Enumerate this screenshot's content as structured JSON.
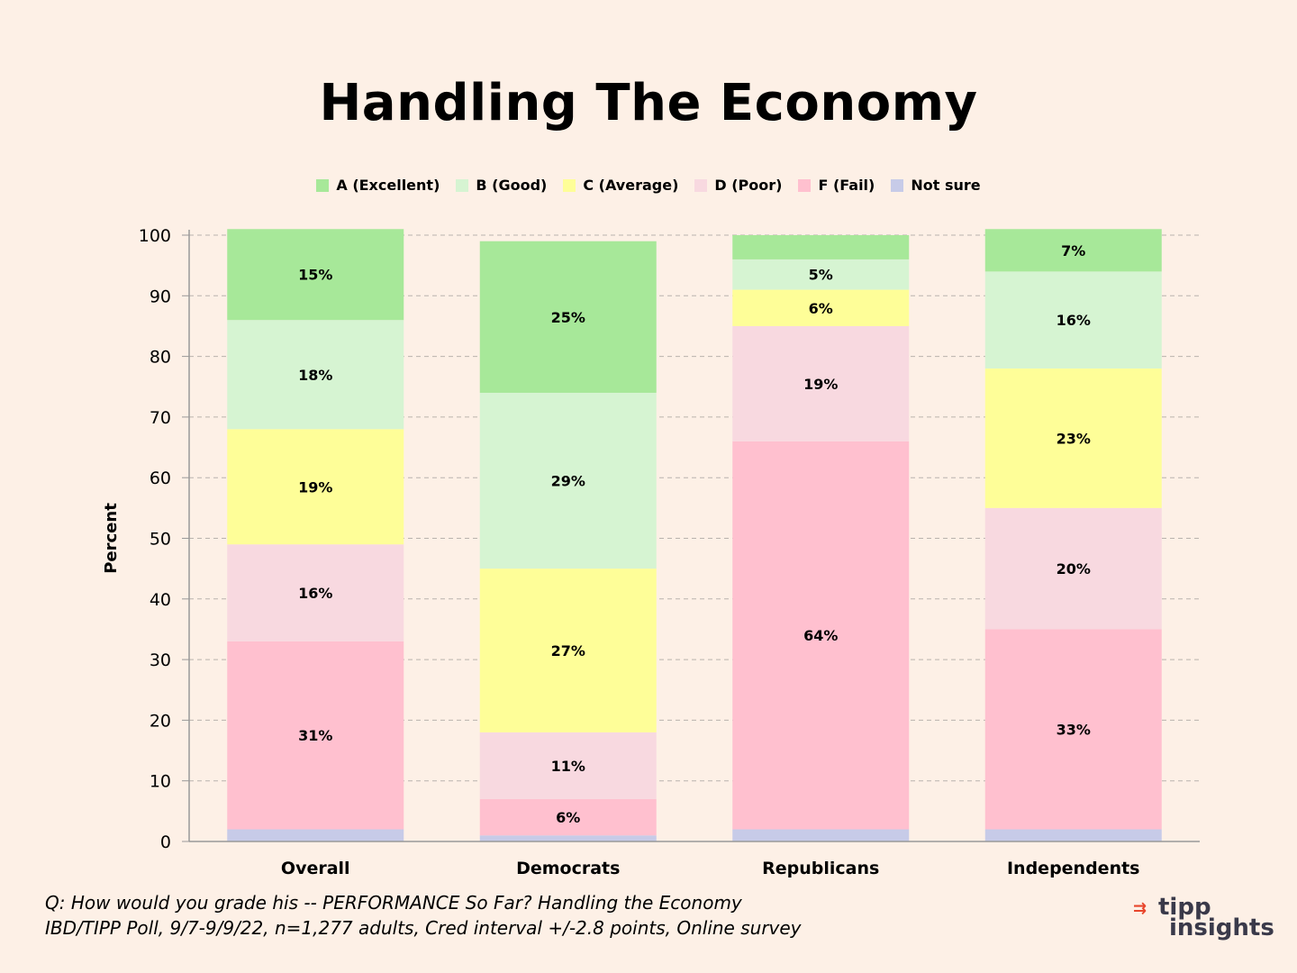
{
  "chart_data": {
    "type": "bar",
    "stacked": true,
    "title": "Handling The Economy",
    "ylabel": "Percent",
    "xlabel": "",
    "ylim": [
      0,
      100
    ],
    "yticks": [
      0,
      10,
      20,
      30,
      40,
      50,
      60,
      70,
      80,
      90,
      100
    ],
    "grid": true,
    "legend_placement": "top",
    "categories": [
      "Overall",
      "Democrats",
      "Republicans",
      "Independents"
    ],
    "series": [
      {
        "name": "Not sure",
        "color": "#c7cbe8",
        "values": [
          2,
          1,
          2,
          2
        ],
        "labels": [
          "",
          "",
          "",
          ""
        ]
      },
      {
        "name": "F (Fail)",
        "color": "#ffc0cf",
        "values": [
          31,
          6,
          64,
          33
        ],
        "labels": [
          "31%",
          "6%",
          "64%",
          "33%"
        ]
      },
      {
        "name": "D (Poor)",
        "color": "#f8d9e0",
        "values": [
          16,
          11,
          19,
          20
        ],
        "labels": [
          "16%",
          "11%",
          "19%",
          "20%"
        ]
      },
      {
        "name": "C (Average)",
        "color": "#fefe98",
        "values": [
          19,
          27,
          6,
          23
        ],
        "labels": [
          "19%",
          "27%",
          "6%",
          "23%"
        ]
      },
      {
        "name": "B (Good)",
        "color": "#d6f4d2",
        "values": [
          18,
          29,
          5,
          16
        ],
        "labels": [
          "18%",
          "29%",
          "5%",
          "16%"
        ]
      },
      {
        "name": "A (Excellent)",
        "color": "#a7e899",
        "values": [
          15,
          25,
          4,
          7
        ],
        "labels": [
          "15%",
          "25%",
          "",
          "7%"
        ]
      }
    ]
  },
  "legend": [
    {
      "label": "A (Excellent)",
      "color": "#a7e899",
      "icon": "swatch-a"
    },
    {
      "label": "B (Good)",
      "color": "#d6f4d2",
      "icon": "swatch-b"
    },
    {
      "label": "C (Average)",
      "color": "#fefe98",
      "icon": "swatch-c"
    },
    {
      "label": "D (Poor)",
      "color": "#f8d9e0",
      "icon": "swatch-d"
    },
    {
      "label": "F (Fail)",
      "color": "#ffc0cf",
      "icon": "swatch-f"
    },
    {
      "label": "Not sure",
      "color": "#c7cbe8",
      "icon": "swatch-notsure"
    }
  ],
  "footer": {
    "question": "Q:  How would you grade his -- PERFORMANCE So Far? Handling the Economy",
    "source": "IBD/TIPP Poll, 9/7-9/9/22, n=1,277 adults, Cred interval +/-2.8 points, Online survey"
  },
  "logo": {
    "line1": "tipp",
    "line2": "insights"
  }
}
